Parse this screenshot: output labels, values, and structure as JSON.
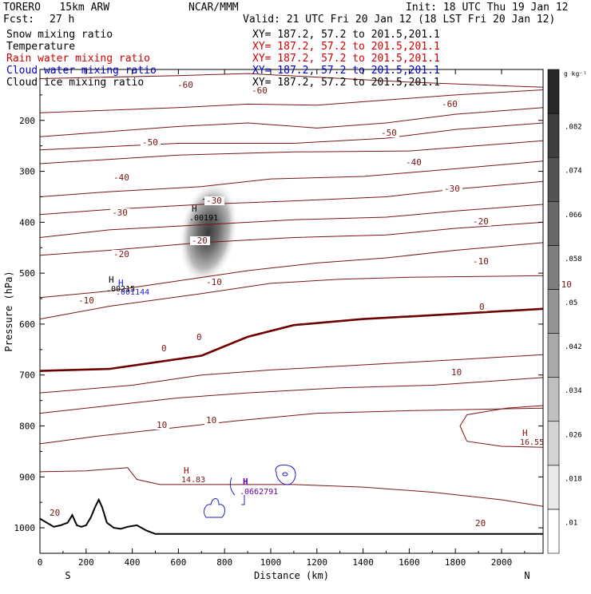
{
  "header": {
    "model": "TORERO   15km ARW",
    "center": "NCAR/MMM",
    "init": "Init: 18 UTC Thu 19 Jan 12",
    "fcst_label": "Fcst:",
    "fcst_value": "27 h",
    "valid": "Valid: 21 UTC Fri 20 Jan 12 (18 LST Fri 20 Jan 12)"
  },
  "fields": [
    {
      "name": "Snow mixing ratio",
      "xy": "XY= 187.2, 57.2 to 201.5,201.1",
      "color": "#000000",
      "xy_color": "#000000"
    },
    {
      "name": "Temperature",
      "xy": "XY= 187.2, 57.2 to 201.5,201.1",
      "color": "#000000",
      "xy_color": "#d40000"
    },
    {
      "name": "Rain water mixing ratio",
      "xy": "XY= 187.2, 57.2 to 201.5,201.1",
      "color": "#d40000",
      "xy_color": "#d40000"
    },
    {
      "name": "Cloud water mixing ratio",
      "xy": "XY= 187.2, 57.2 to 201.5,201.1",
      "color": "#0000c8",
      "xy_color": "#0000c8"
    },
    {
      "name": "Cloud ice mixing ratio",
      "xy": "XY= 187.2, 57.2 to 201.5,201.1",
      "color": "#000000",
      "xy_color": "#000000"
    }
  ],
  "colors": {
    "temperature": "#7a1414",
    "freezing": "#6e0000",
    "cloud_water": "#2020c0",
    "cloud_ice": "#6a00a0",
    "snow": "#000000",
    "terrain": "#000000"
  },
  "chart_data": {
    "type": "heatmap",
    "xlabel": "Distance (km)",
    "ylabel": "Pressure (hPa)",
    "xlim": [
      0,
      2180
    ],
    "ylim": [
      1050,
      100
    ],
    "x_ticks": [
      0,
      200,
      400,
      600,
      800,
      1000,
      1200,
      1400,
      1600,
      1800,
      2000
    ],
    "y_ticks": [
      200,
      300,
      400,
      500,
      600,
      700,
      800,
      900,
      1000
    ],
    "x_start_label": "S",
    "x_end_label": "N",
    "colorbar": {
      "unit": "g kg⁻¹",
      "ticks": [
        ".01",
        ".018",
        ".026",
        ".034",
        ".042",
        ".05",
        ".058",
        ".066",
        ".074",
        ".082"
      ]
    },
    "isotherm_label_values": [
      "-60",
      "-60",
      "-60",
      "-50",
      "-50",
      "-40",
      "-40",
      "-30",
      "-30",
      "-30",
      "-20",
      "-20",
      "-20",
      "-10",
      "-10",
      "-10",
      "-10",
      "0",
      "0",
      "0",
      "10",
      "10",
      "10",
      "20",
      "20"
    ],
    "isotherms": [
      {
        "v": -60,
        "pts": [
          [
            0,
            118
          ],
          [
            600,
            112
          ],
          [
            900,
            108
          ],
          [
            1200,
            115
          ],
          [
            1600,
            125
          ],
          [
            2180,
            135
          ]
        ]
      },
      {
        "v": -50,
        "pts": [
          [
            0,
            185
          ],
          [
            600,
            175
          ],
          [
            900,
            168
          ],
          [
            1200,
            170
          ],
          [
            1500,
            160
          ],
          [
            1800,
            150
          ],
          [
            2180,
            140
          ]
        ]
      },
      {
        "v": -40,
        "pts": [
          [
            0,
            232
          ],
          [
            600,
            212
          ],
          [
            900,
            205
          ],
          [
            1200,
            215
          ],
          [
            1500,
            205
          ],
          [
            1800,
            188
          ],
          [
            2180,
            175
          ]
        ]
      },
      {
        "v": -45,
        "pts": [
          [
            0,
            258
          ],
          [
            600,
            245
          ],
          [
            1100,
            245
          ],
          [
            1500,
            235
          ],
          [
            1800,
            218
          ],
          [
            2180,
            205
          ]
        ]
      },
      {
        "v": -35,
        "pts": [
          [
            0,
            285
          ],
          [
            600,
            268
          ],
          [
            1100,
            262
          ],
          [
            1600,
            260
          ],
          [
            2180,
            240
          ]
        ]
      },
      {
        "v": -30,
        "pts": [
          [
            0,
            350
          ],
          [
            300,
            340
          ],
          [
            700,
            330
          ],
          [
            1000,
            315
          ],
          [
            1400,
            310
          ],
          [
            1800,
            295
          ],
          [
            2180,
            280
          ]
        ]
      },
      {
        "v": -25,
        "pts": [
          [
            0,
            385
          ],
          [
            300,
            375
          ],
          [
            700,
            365
          ],
          [
            1100,
            358
          ],
          [
            1500,
            350
          ],
          [
            1800,
            335
          ],
          [
            2180,
            320
          ]
        ]
      },
      {
        "v": -20,
        "pts": [
          [
            0,
            430
          ],
          [
            300,
            415
          ],
          [
            700,
            405
          ],
          [
            1100,
            395
          ],
          [
            1500,
            390
          ],
          [
            1800,
            378
          ],
          [
            2180,
            365
          ]
        ]
      },
      {
        "v": -15,
        "pts": [
          [
            0,
            465
          ],
          [
            300,
            455
          ],
          [
            700,
            440
          ],
          [
            1100,
            430
          ],
          [
            1500,
            425
          ],
          [
            1800,
            412
          ],
          [
            2180,
            400
          ]
        ]
      },
      {
        "v": -10,
        "pts": [
          [
            0,
            548
          ],
          [
            300,
            535
          ],
          [
            600,
            515
          ],
          [
            900,
            495
          ],
          [
            1200,
            480
          ],
          [
            1500,
            470
          ],
          [
            1800,
            455
          ],
          [
            2180,
            440
          ]
        ]
      },
      {
        "v": -5,
        "pts": [
          [
            0,
            590
          ],
          [
            300,
            565
          ],
          [
            700,
            540
          ],
          [
            1000,
            520
          ],
          [
            1300,
            512
          ],
          [
            1600,
            508
          ],
          [
            2180,
            505
          ]
        ]
      },
      {
        "v": 5,
        "pts": [
          [
            0,
            735
          ],
          [
            400,
            720
          ],
          [
            700,
            700
          ],
          [
            1000,
            690
          ],
          [
            1400,
            680
          ],
          [
            1800,
            670
          ],
          [
            2180,
            660
          ]
        ]
      },
      {
        "v": 10,
        "pts": [
          [
            0,
            775
          ],
          [
            300,
            760
          ],
          [
            600,
            745
          ],
          [
            900,
            735
          ],
          [
            1300,
            725
          ],
          [
            1700,
            720
          ],
          [
            2180,
            705
          ]
        ]
      },
      {
        "v": 15,
        "pts": [
          [
            0,
            835
          ],
          [
            250,
            820
          ],
          [
            550,
            805
          ],
          [
            850,
            790
          ],
          [
            1200,
            775
          ],
          [
            1600,
            770
          ],
          [
            2180,
            765
          ]
        ]
      }
    ],
    "freezing_line": [
      [
        0,
        692
      ],
      [
        300,
        688
      ],
      [
        500,
        675
      ],
      [
        700,
        662
      ],
      [
        900,
        625
      ],
      [
        1100,
        602
      ],
      [
        1400,
        590
      ],
      [
        1800,
        580
      ],
      [
        2180,
        570
      ]
    ],
    "isotherm_20": [
      [
        0,
        890
      ],
      [
        200,
        888
      ],
      [
        380,
        882
      ],
      [
        420,
        905
      ],
      [
        520,
        915
      ],
      [
        800,
        915
      ],
      [
        1100,
        915
      ],
      [
        1400,
        920
      ],
      [
        1700,
        930
      ],
      [
        2000,
        945
      ],
      [
        2180,
        958
      ]
    ],
    "warm_center": [
      [
        2180,
        760
      ],
      [
        2020,
        765
      ],
      [
        1850,
        778
      ],
      [
        1820,
        800
      ],
      [
        1850,
        830
      ],
      [
        2000,
        840
      ],
      [
        2180,
        842
      ]
    ],
    "terrain": [
      [
        0,
        982
      ],
      [
        30,
        990
      ],
      [
        60,
        998
      ],
      [
        90,
        995
      ],
      [
        120,
        990
      ],
      [
        140,
        975
      ],
      [
        160,
        995
      ],
      [
        180,
        998
      ],
      [
        200,
        995
      ],
      [
        220,
        980
      ],
      [
        240,
        958
      ],
      [
        255,
        945
      ],
      [
        270,
        960
      ],
      [
        290,
        990
      ],
      [
        320,
        1000
      ],
      [
        350,
        1002
      ],
      [
        380,
        998
      ],
      [
        420,
        995
      ],
      [
        460,
        1005
      ],
      [
        500,
        1012
      ],
      [
        600,
        1012
      ],
      [
        1000,
        1012
      ],
      [
        1600,
        1012
      ],
      [
        2180,
        1012
      ]
    ],
    "snow_max": {
      "label": "H",
      "value": ".00191",
      "x": 650,
      "p": 385
    },
    "ice_max": {
      "label": "H",
      "value": ".00215",
      "x": 300,
      "p": 525
    },
    "water_max": {
      "label": "H",
      "value": ".001144",
      "x": 350,
      "p": 530
    },
    "warm_max": {
      "label": "H",
      "value": "16.55",
      "x": 2070,
      "p": 810
    },
    "high_a": {
      "label": "H",
      "value": "14.83",
      "x": 630,
      "p": 895
    },
    "high_b": {
      "label": "H",
      "value": ".0662791",
      "x": 880,
      "p": 920
    }
  }
}
